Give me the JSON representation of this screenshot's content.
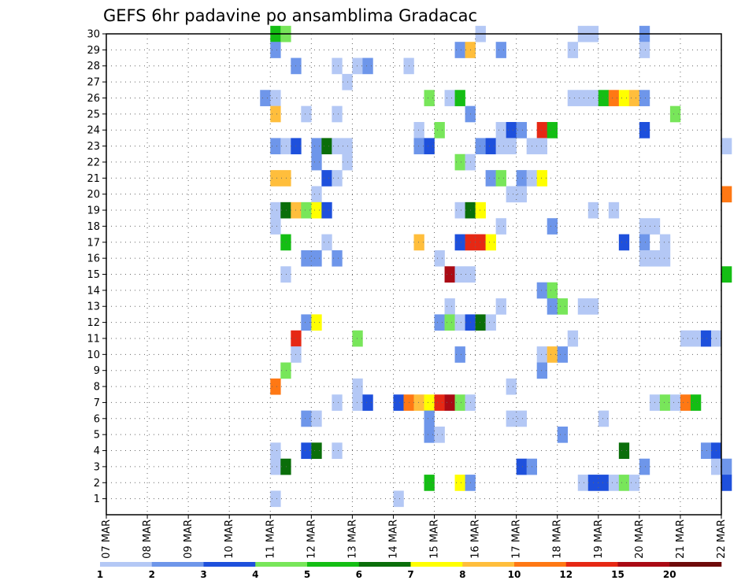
{
  "chart_data": {
    "type": "heatmap",
    "title": "GEFS 6hr padavine po ansamblima Gradacac",
    "xlabel": "",
    "ylabel": "",
    "y_range": [
      0,
      30
    ],
    "x_ticks": [
      "07 MAR",
      "08 MAR",
      "09 MAR",
      "10 MAR",
      "11 MAR",
      "12 MAR",
      "13 MAR",
      "14 MAR",
      "15 MAR",
      "16 MAR",
      "17 MAR",
      "18 MAR",
      "19 MAR",
      "20 MAR",
      "21 MAR",
      "22 MAR"
    ],
    "y_ticks": [
      "1",
      "2",
      "3",
      "4",
      "5",
      "6",
      "7",
      "8",
      "9",
      "10",
      "11",
      "12",
      "13",
      "14",
      "15",
      "16",
      "17",
      "18",
      "19",
      "20",
      "21",
      "22",
      "23",
      "24",
      "25",
      "26",
      "27",
      "28",
      "29",
      "30"
    ],
    "x_unit": "6-hour step (4 per day) from 07 MAR",
    "grid": true,
    "colorscale": {
      "bounds": [
        "1",
        "2",
        "3",
        "4",
        "5",
        "6",
        "7",
        "8",
        "10",
        "12",
        "15",
        "20"
      ],
      "colors": [
        "#b4c8f5",
        "#6e96ea",
        "#1e50dc",
        "#78e65a",
        "#14be14",
        "#0a6e0a",
        "#ffff00",
        "#ffbe3c",
        "#ff7814",
        "#e62814",
        "#aa0a14",
        "#6e0a0a"
      ]
    },
    "cells": [
      {
        "m": 30,
        "t": 16,
        "c": 4
      },
      {
        "m": 30,
        "t": 17,
        "c": 3
      },
      {
        "m": 30,
        "t": 36,
        "c": 0
      },
      {
        "m": 30,
        "t": 46,
        "c": 0
      },
      {
        "m": 30,
        "t": 47,
        "c": 0
      },
      {
        "m": 30,
        "t": 52,
        "c": 1
      },
      {
        "m": 29,
        "t": 16,
        "c": 1
      },
      {
        "m": 29,
        "t": 34,
        "c": 1
      },
      {
        "m": 29,
        "t": 35,
        "c": 7
      },
      {
        "m": 29,
        "t": 38,
        "c": 1
      },
      {
        "m": 29,
        "t": 45,
        "c": 0
      },
      {
        "m": 29,
        "t": 52,
        "c": 0
      },
      {
        "m": 28,
        "t": 18,
        "c": 1
      },
      {
        "m": 28,
        "t": 22,
        "c": 0
      },
      {
        "m": 28,
        "t": 24,
        "c": 0
      },
      {
        "m": 28,
        "t": 25,
        "c": 1
      },
      {
        "m": 28,
        "t": 29,
        "c": 0
      },
      {
        "m": 27,
        "t": 23,
        "c": 0
      },
      {
        "m": 26,
        "t": 15,
        "c": 1
      },
      {
        "m": 26,
        "t": 16,
        "c": 0
      },
      {
        "m": 26,
        "t": 31,
        "c": 3
      },
      {
        "m": 26,
        "t": 33,
        "c": 0
      },
      {
        "m": 26,
        "t": 34,
        "c": 4
      },
      {
        "m": 26,
        "t": 45,
        "c": 0
      },
      {
        "m": 26,
        "t": 46,
        "c": 0
      },
      {
        "m": 26,
        "t": 47,
        "c": 0
      },
      {
        "m": 26,
        "t": 48,
        "c": 4
      },
      {
        "m": 26,
        "t": 49,
        "c": 8
      },
      {
        "m": 26,
        "t": 50,
        "c": 6
      },
      {
        "m": 26,
        "t": 51,
        "c": 7
      },
      {
        "m": 26,
        "t": 52,
        "c": 1
      },
      {
        "m": 25,
        "t": 16,
        "c": 7
      },
      {
        "m": 25,
        "t": 19,
        "c": 0
      },
      {
        "m": 25,
        "t": 22,
        "c": 0
      },
      {
        "m": 25,
        "t": 35,
        "c": 1
      },
      {
        "m": 25,
        "t": 55,
        "c": 3
      },
      {
        "m": 24,
        "t": 30,
        "c": 0
      },
      {
        "m": 24,
        "t": 32,
        "c": 3
      },
      {
        "m": 24,
        "t": 38,
        "c": 0
      },
      {
        "m": 24,
        "t": 39,
        "c": 2
      },
      {
        "m": 24,
        "t": 40,
        "c": 1
      },
      {
        "m": 24,
        "t": 42,
        "c": 9
      },
      {
        "m": 24,
        "t": 43,
        "c": 4
      },
      {
        "m": 24,
        "t": 52,
        "c": 2
      },
      {
        "m": 23,
        "t": 16,
        "c": 1
      },
      {
        "m": 23,
        "t": 17,
        "c": 0
      },
      {
        "m": 23,
        "t": 18,
        "c": 2
      },
      {
        "m": 23,
        "t": 20,
        "c": 1
      },
      {
        "m": 23,
        "t": 21,
        "c": 5
      },
      {
        "m": 23,
        "t": 22,
        "c": 0
      },
      {
        "m": 23,
        "t": 23,
        "c": 0
      },
      {
        "m": 23,
        "t": 30,
        "c": 1
      },
      {
        "m": 23,
        "t": 31,
        "c": 2
      },
      {
        "m": 23,
        "t": 36,
        "c": 1
      },
      {
        "m": 23,
        "t": 37,
        "c": 2
      },
      {
        "m": 23,
        "t": 38,
        "c": 0
      },
      {
        "m": 23,
        "t": 39,
        "c": 0
      },
      {
        "m": 23,
        "t": 41,
        "c": 0
      },
      {
        "m": 23,
        "t": 42,
        "c": 0
      },
      {
        "m": 23,
        "t": 60,
        "c": 0
      },
      {
        "m": 22,
        "t": 20,
        "c": 1
      },
      {
        "m": 22,
        "t": 23,
        "c": 0
      },
      {
        "m": 22,
        "t": 34,
        "c": 3
      },
      {
        "m": 22,
        "t": 35,
        "c": 0
      },
      {
        "m": 21,
        "t": 16,
        "c": 7
      },
      {
        "m": 21,
        "t": 17,
        "c": 7
      },
      {
        "m": 21,
        "t": 21,
        "c": 2
      },
      {
        "m": 21,
        "t": 22,
        "c": 0
      },
      {
        "m": 21,
        "t": 37,
        "c": 1
      },
      {
        "m": 21,
        "t": 38,
        "c": 3
      },
      {
        "m": 21,
        "t": 40,
        "c": 1
      },
      {
        "m": 21,
        "t": 41,
        "c": 0
      },
      {
        "m": 21,
        "t": 42,
        "c": 6
      },
      {
        "m": 20,
        "t": 20,
        "c": 0
      },
      {
        "m": 20,
        "t": 39,
        "c": 0
      },
      {
        "m": 20,
        "t": 40,
        "c": 0
      },
      {
        "m": 20,
        "t": 60,
        "c": 8
      },
      {
        "m": 19,
        "t": 16,
        "c": 0
      },
      {
        "m": 19,
        "t": 17,
        "c": 5
      },
      {
        "m": 19,
        "t": 18,
        "c": 7
      },
      {
        "m": 19,
        "t": 19,
        "c": 3
      },
      {
        "m": 19,
        "t": 20,
        "c": 6
      },
      {
        "m": 19,
        "t": 21,
        "c": 2
      },
      {
        "m": 19,
        "t": 34,
        "c": 0
      },
      {
        "m": 19,
        "t": 35,
        "c": 5
      },
      {
        "m": 19,
        "t": 36,
        "c": 6
      },
      {
        "m": 19,
        "t": 47,
        "c": 0
      },
      {
        "m": 19,
        "t": 49,
        "c": 0
      },
      {
        "m": 18,
        "t": 16,
        "c": 0
      },
      {
        "m": 18,
        "t": 38,
        "c": 0
      },
      {
        "m": 18,
        "t": 43,
        "c": 1
      },
      {
        "m": 18,
        "t": 52,
        "c": 0
      },
      {
        "m": 18,
        "t": 53,
        "c": 0
      },
      {
        "m": 17,
        "t": 17,
        "c": 4
      },
      {
        "m": 17,
        "t": 21,
        "c": 0
      },
      {
        "m": 17,
        "t": 30,
        "c": 7
      },
      {
        "m": 17,
        "t": 34,
        "c": 2
      },
      {
        "m": 17,
        "t": 35,
        "c": 9
      },
      {
        "m": 17,
        "t": 36,
        "c": 9
      },
      {
        "m": 17,
        "t": 37,
        "c": 6
      },
      {
        "m": 17,
        "t": 50,
        "c": 2
      },
      {
        "m": 17,
        "t": 52,
        "c": 1
      },
      {
        "m": 17,
        "t": 54,
        "c": 0
      },
      {
        "m": 16,
        "t": 19,
        "c": 1
      },
      {
        "m": 16,
        "t": 20,
        "c": 1
      },
      {
        "m": 16,
        "t": 22,
        "c": 1
      },
      {
        "m": 16,
        "t": 32,
        "c": 0
      },
      {
        "m": 16,
        "t": 52,
        "c": 0
      },
      {
        "m": 16,
        "t": 53,
        "c": 0
      },
      {
        "m": 16,
        "t": 54,
        "c": 0
      },
      {
        "m": 15,
        "t": 17,
        "c": 0
      },
      {
        "m": 15,
        "t": 33,
        "c": 10
      },
      {
        "m": 15,
        "t": 34,
        "c": 0
      },
      {
        "m": 15,
        "t": 35,
        "c": 0
      },
      {
        "m": 15,
        "t": 60,
        "c": 4
      },
      {
        "m": 14,
        "t": 42,
        "c": 1
      },
      {
        "m": 14,
        "t": 43,
        "c": 3
      },
      {
        "m": 13,
        "t": 33,
        "c": 0
      },
      {
        "m": 13,
        "t": 38,
        "c": 0
      },
      {
        "m": 13,
        "t": 43,
        "c": 1
      },
      {
        "m": 13,
        "t": 44,
        "c": 3
      },
      {
        "m": 13,
        "t": 46,
        "c": 0
      },
      {
        "m": 13,
        "t": 47,
        "c": 0
      },
      {
        "m": 12,
        "t": 19,
        "c": 1
      },
      {
        "m": 12,
        "t": 20,
        "c": 6
      },
      {
        "m": 12,
        "t": 32,
        "c": 1
      },
      {
        "m": 12,
        "t": 33,
        "c": 3
      },
      {
        "m": 12,
        "t": 34,
        "c": 0
      },
      {
        "m": 12,
        "t": 35,
        "c": 2
      },
      {
        "m": 12,
        "t": 36,
        "c": 5
      },
      {
        "m": 12,
        "t": 37,
        "c": 0
      },
      {
        "m": 11,
        "t": 18,
        "c": 9
      },
      {
        "m": 11,
        "t": 24,
        "c": 3
      },
      {
        "m": 11,
        "t": 45,
        "c": 0
      },
      {
        "m": 11,
        "t": 56,
        "c": 0
      },
      {
        "m": 11,
        "t": 57,
        "c": 0
      },
      {
        "m": 11,
        "t": 58,
        "c": 2
      },
      {
        "m": 11,
        "t": 59,
        "c": 0
      },
      {
        "m": 10,
        "t": 18,
        "c": 0
      },
      {
        "m": 10,
        "t": 34,
        "c": 1
      },
      {
        "m": 10,
        "t": 42,
        "c": 0
      },
      {
        "m": 10,
        "t": 43,
        "c": 7
      },
      {
        "m": 10,
        "t": 44,
        "c": 1
      },
      {
        "m": 9,
        "t": 17,
        "c": 3
      },
      {
        "m": 9,
        "t": 42,
        "c": 1
      },
      {
        "m": 8,
        "t": 16,
        "c": 8
      },
      {
        "m": 8,
        "t": 24,
        "c": 0
      },
      {
        "m": 8,
        "t": 39,
        "c": 0
      },
      {
        "m": 7,
        "t": 22,
        "c": 0
      },
      {
        "m": 7,
        "t": 24,
        "c": 0
      },
      {
        "m": 7,
        "t": 25,
        "c": 2
      },
      {
        "m": 7,
        "t": 28,
        "c": 2
      },
      {
        "m": 7,
        "t": 29,
        "c": 8
      },
      {
        "m": 7,
        "t": 30,
        "c": 7
      },
      {
        "m": 7,
        "t": 31,
        "c": 6
      },
      {
        "m": 7,
        "t": 32,
        "c": 9
      },
      {
        "m": 7,
        "t": 33,
        "c": 10
      },
      {
        "m": 7,
        "t": 34,
        "c": 3
      },
      {
        "m": 7,
        "t": 35,
        "c": 0
      },
      {
        "m": 7,
        "t": 53,
        "c": 0
      },
      {
        "m": 7,
        "t": 54,
        "c": 3
      },
      {
        "m": 7,
        "t": 55,
        "c": 0
      },
      {
        "m": 7,
        "t": 56,
        "c": 8
      },
      {
        "m": 7,
        "t": 57,
        "c": 4
      },
      {
        "m": 6,
        "t": 19,
        "c": 1
      },
      {
        "m": 6,
        "t": 20,
        "c": 0
      },
      {
        "m": 6,
        "t": 31,
        "c": 1
      },
      {
        "m": 6,
        "t": 39,
        "c": 0
      },
      {
        "m": 6,
        "t": 40,
        "c": 0
      },
      {
        "m": 6,
        "t": 48,
        "c": 0
      },
      {
        "m": 5,
        "t": 31,
        "c": 1
      },
      {
        "m": 5,
        "t": 32,
        "c": 0
      },
      {
        "m": 5,
        "t": 44,
        "c": 1
      },
      {
        "m": 4,
        "t": 16,
        "c": 0
      },
      {
        "m": 4,
        "t": 19,
        "c": 2
      },
      {
        "m": 4,
        "t": 20,
        "c": 5
      },
      {
        "m": 4,
        "t": 22,
        "c": 0
      },
      {
        "m": 4,
        "t": 50,
        "c": 5
      },
      {
        "m": 4,
        "t": 58,
        "c": 1
      },
      {
        "m": 4,
        "t": 59,
        "c": 2
      },
      {
        "m": 3,
        "t": 16,
        "c": 0
      },
      {
        "m": 3,
        "t": 17,
        "c": 5
      },
      {
        "m": 3,
        "t": 40,
        "c": 2
      },
      {
        "m": 3,
        "t": 41,
        "c": 1
      },
      {
        "m": 3,
        "t": 52,
        "c": 1
      },
      {
        "m": 3,
        "t": 59,
        "c": 0
      },
      {
        "m": 3,
        "t": 60,
        "c": 1
      },
      {
        "m": 2,
        "t": 31,
        "c": 4
      },
      {
        "m": 2,
        "t": 34,
        "c": 6
      },
      {
        "m": 2,
        "t": 35,
        "c": 1
      },
      {
        "m": 2,
        "t": 46,
        "c": 0
      },
      {
        "m": 2,
        "t": 47,
        "c": 2
      },
      {
        "m": 2,
        "t": 48,
        "c": 2
      },
      {
        "m": 2,
        "t": 49,
        "c": 0
      },
      {
        "m": 2,
        "t": 50,
        "c": 3
      },
      {
        "m": 2,
        "t": 51,
        "c": 0
      },
      {
        "m": 2,
        "t": 60,
        "c": 2
      },
      {
        "m": 1,
        "t": 16,
        "c": 0
      },
      {
        "m": 1,
        "t": 28,
        "c": 0
      }
    ]
  }
}
